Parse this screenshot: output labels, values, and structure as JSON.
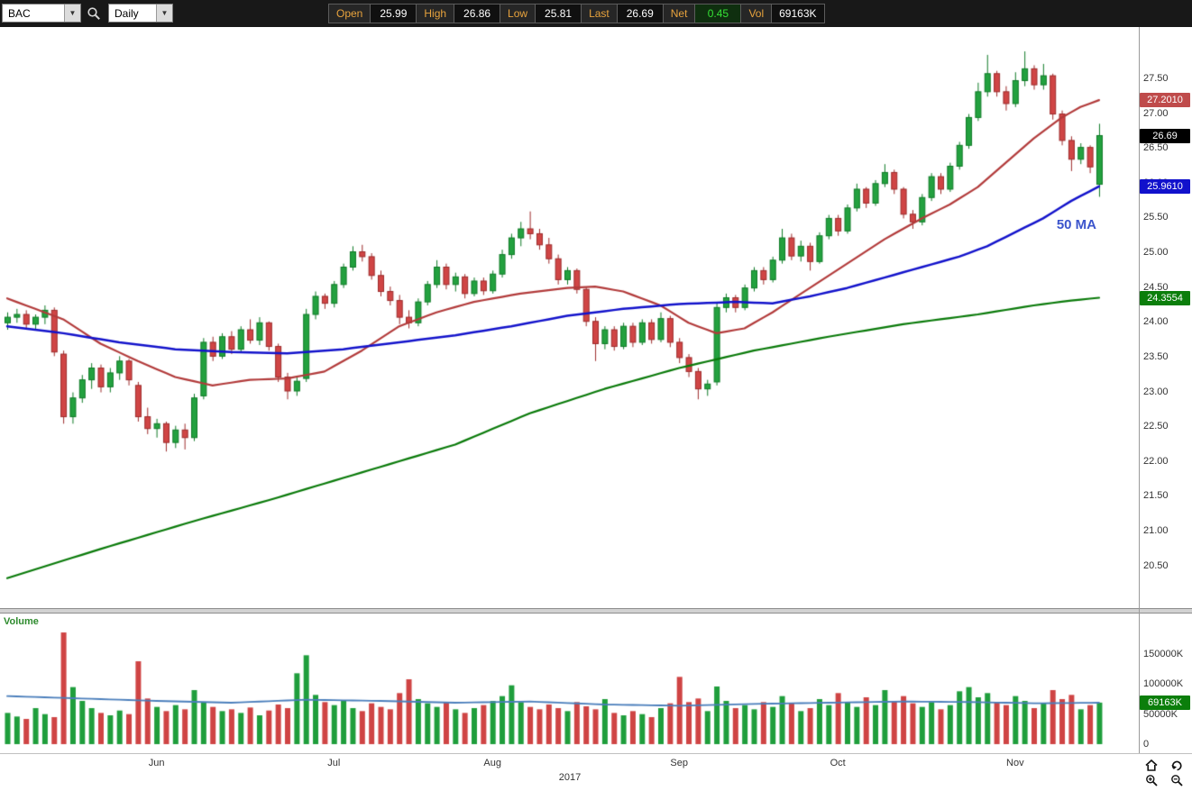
{
  "toolbar": {
    "symbol": "BAC",
    "timeframe": "Daily",
    "fields": [
      {
        "label": "Open",
        "value": "25.99"
      },
      {
        "label": "High",
        "value": "26.86"
      },
      {
        "label": "Low",
        "value": "25.81"
      },
      {
        "label": "Last",
        "value": "26.69"
      },
      {
        "label": "Net",
        "value": "0.45"
      },
      {
        "label": "Vol",
        "value": "69163K"
      }
    ]
  },
  "chart_data": {
    "type": "candlestick",
    "symbol": "BAC",
    "timeframe": "Daily",
    "year_label": "2017",
    "ma_label": "50 MA",
    "volume_panel_label": "Volume",
    "price_axis": {
      "min": 19.9,
      "max": 28.25,
      "ticks": [
        27.5,
        27.0,
        26.5,
        26.0,
        25.5,
        25.0,
        24.5,
        24.0,
        23.5,
        23.0,
        22.5,
        22.0,
        21.5,
        21.0,
        20.5
      ]
    },
    "month_ticks": [
      {
        "label": "Jun",
        "index": 16
      },
      {
        "label": "Jul",
        "index": 35
      },
      {
        "label": "Aug",
        "index": 52
      },
      {
        "label": "Sep",
        "index": 72
      },
      {
        "label": "Oct",
        "index": 89
      },
      {
        "label": "Nov",
        "index": 108
      }
    ],
    "style": {
      "up": "#23a13f",
      "up_edge": "#0e7a26",
      "down": "#d04545",
      "down_edge": "#9c2a2a",
      "vol_up": "#1f9e3c",
      "vol_down": "#cf4444"
    },
    "candles": [
      [
        24.0,
        24.15,
        23.9,
        24.08
      ],
      [
        24.08,
        24.2,
        24.0,
        24.12
      ],
      [
        24.12,
        24.18,
        23.92,
        23.98
      ],
      [
        23.98,
        24.12,
        23.9,
        24.08
      ],
      [
        24.08,
        24.25,
        23.98,
        24.18
      ],
      [
        24.18,
        24.22,
        23.52,
        23.58
      ],
      [
        23.55,
        23.6,
        22.55,
        22.65
      ],
      [
        22.65,
        23.0,
        22.55,
        22.92
      ],
      [
        22.92,
        23.25,
        22.85,
        23.18
      ],
      [
        23.18,
        23.42,
        23.05,
        23.35
      ],
      [
        23.35,
        23.4,
        23.0,
        23.08
      ],
      [
        23.08,
        23.35,
        23.0,
        23.28
      ],
      [
        23.28,
        23.52,
        23.18,
        23.45
      ],
      [
        23.45,
        23.48,
        23.1,
        23.18
      ],
      [
        23.1,
        23.15,
        22.58,
        22.65
      ],
      [
        22.65,
        22.78,
        22.4,
        22.48
      ],
      [
        22.48,
        22.62,
        22.35,
        22.55
      ],
      [
        22.55,
        22.58,
        22.15,
        22.28
      ],
      [
        22.28,
        22.52,
        22.2,
        22.46
      ],
      [
        22.46,
        22.55,
        22.18,
        22.35
      ],
      [
        22.35,
        22.98,
        22.3,
        22.92
      ],
      [
        22.95,
        23.78,
        22.9,
        23.72
      ],
      [
        23.72,
        23.8,
        23.45,
        23.52
      ],
      [
        23.52,
        23.85,
        23.48,
        23.8
      ],
      [
        23.8,
        23.88,
        23.55,
        23.62
      ],
      [
        23.62,
        23.95,
        23.58,
        23.9
      ],
      [
        23.9,
        24.05,
        23.7,
        23.75
      ],
      [
        23.75,
        24.08,
        23.68,
        24.0
      ],
      [
        24.0,
        24.02,
        23.6,
        23.66
      ],
      [
        23.66,
        23.7,
        23.15,
        23.22
      ],
      [
        23.22,
        23.28,
        22.9,
        23.02
      ],
      [
        23.02,
        23.22,
        22.95,
        23.16
      ],
      [
        23.2,
        24.2,
        23.15,
        24.12
      ],
      [
        24.12,
        24.45,
        24.05,
        24.38
      ],
      [
        24.38,
        24.42,
        24.2,
        24.28
      ],
      [
        24.28,
        24.6,
        24.22,
        24.55
      ],
      [
        24.55,
        24.85,
        24.5,
        24.8
      ],
      [
        24.8,
        25.1,
        24.75,
        25.02
      ],
      [
        25.02,
        25.12,
        24.88,
        24.95
      ],
      [
        24.95,
        25.0,
        24.62,
        24.68
      ],
      [
        24.68,
        24.75,
        24.38,
        24.45
      ],
      [
        24.45,
        24.52,
        24.25,
        24.32
      ],
      [
        24.32,
        24.4,
        23.98,
        24.08
      ],
      [
        24.08,
        24.18,
        23.92,
        24.0
      ],
      [
        24.0,
        24.35,
        23.95,
        24.3
      ],
      [
        24.3,
        24.6,
        24.25,
        24.55
      ],
      [
        24.55,
        24.9,
        24.5,
        24.8
      ],
      [
        24.8,
        24.85,
        24.48,
        24.55
      ],
      [
        24.55,
        24.72,
        24.45,
        24.66
      ],
      [
        24.66,
        24.7,
        24.35,
        24.42
      ],
      [
        24.42,
        24.65,
        24.38,
        24.6
      ],
      [
        24.6,
        24.65,
        24.4,
        24.46
      ],
      [
        24.46,
        24.75,
        24.42,
        24.7
      ],
      [
        24.7,
        25.05,
        24.65,
        24.98
      ],
      [
        24.98,
        25.28,
        24.92,
        25.22
      ],
      [
        25.22,
        25.45,
        25.1,
        25.35
      ],
      [
        25.35,
        25.6,
        25.2,
        25.28
      ],
      [
        25.28,
        25.35,
        25.05,
        25.12
      ],
      [
        25.12,
        25.22,
        24.85,
        24.92
      ],
      [
        24.92,
        24.98,
        24.55,
        24.62
      ],
      [
        24.62,
        24.8,
        24.55,
        24.75
      ],
      [
        24.75,
        24.78,
        24.42,
        24.48
      ],
      [
        24.48,
        24.52,
        23.95,
        24.02
      ],
      [
        24.02,
        24.08,
        23.45,
        23.7
      ],
      [
        23.7,
        23.95,
        23.62,
        23.9
      ],
      [
        23.9,
        23.95,
        23.6,
        23.66
      ],
      [
        23.66,
        24.0,
        23.62,
        23.95
      ],
      [
        23.95,
        24.0,
        23.65,
        23.72
      ],
      [
        23.72,
        24.05,
        23.68,
        24.0
      ],
      [
        24.0,
        24.05,
        23.7,
        23.76
      ],
      [
        23.76,
        24.15,
        23.72,
        24.06
      ],
      [
        24.06,
        24.1,
        23.65,
        23.72
      ],
      [
        23.72,
        23.78,
        23.42,
        23.5
      ],
      [
        23.5,
        23.55,
        23.22,
        23.3
      ],
      [
        23.3,
        23.35,
        22.9,
        23.05
      ],
      [
        23.05,
        23.18,
        22.95,
        23.12
      ],
      [
        23.15,
        24.28,
        23.1,
        24.22
      ],
      [
        24.22,
        24.42,
        24.15,
        24.36
      ],
      [
        24.36,
        24.4,
        24.15,
        24.22
      ],
      [
        24.22,
        24.55,
        24.18,
        24.5
      ],
      [
        24.5,
        24.8,
        24.45,
        24.75
      ],
      [
        24.75,
        24.8,
        24.55,
        24.62
      ],
      [
        24.62,
        24.95,
        24.58,
        24.9
      ],
      [
        24.9,
        25.35,
        24.85,
        25.22
      ],
      [
        25.22,
        25.28,
        24.9,
        24.96
      ],
      [
        24.96,
        25.18,
        24.88,
        25.1
      ],
      [
        25.1,
        25.15,
        24.75,
        24.88
      ],
      [
        24.88,
        25.3,
        24.85,
        25.25
      ],
      [
        25.25,
        25.55,
        25.2,
        25.5
      ],
      [
        25.5,
        25.55,
        25.25,
        25.32
      ],
      [
        25.32,
        25.7,
        25.28,
        25.65
      ],
      [
        25.65,
        26.0,
        25.6,
        25.92
      ],
      [
        25.92,
        25.95,
        25.65,
        25.72
      ],
      [
        25.72,
        26.05,
        25.68,
        26.0
      ],
      [
        26.0,
        26.28,
        25.95,
        26.16
      ],
      [
        26.16,
        26.2,
        25.85,
        25.92
      ],
      [
        25.92,
        25.95,
        25.5,
        25.56
      ],
      [
        25.56,
        25.62,
        25.35,
        25.45
      ],
      [
        25.45,
        25.85,
        25.4,
        25.8
      ],
      [
        25.8,
        26.15,
        25.75,
        26.1
      ],
      [
        26.1,
        26.15,
        25.85,
        25.92
      ],
      [
        25.92,
        26.3,
        25.88,
        26.25
      ],
      [
        26.25,
        26.6,
        26.2,
        26.55
      ],
      [
        26.55,
        27.0,
        26.5,
        26.95
      ],
      [
        26.95,
        27.45,
        26.9,
        27.32
      ],
      [
        27.32,
        27.85,
        27.25,
        27.58
      ],
      [
        27.58,
        27.62,
        27.25,
        27.32
      ],
      [
        27.32,
        27.4,
        27.05,
        27.15
      ],
      [
        27.15,
        27.6,
        27.1,
        27.48
      ],
      [
        27.48,
        27.9,
        27.4,
        27.65
      ],
      [
        27.65,
        27.7,
        27.35,
        27.42
      ],
      [
        27.42,
        27.72,
        27.35,
        27.55
      ],
      [
        27.55,
        27.58,
        26.92,
        27.0
      ],
      [
        27.0,
        27.05,
        26.55,
        26.62
      ],
      [
        26.62,
        26.68,
        26.18,
        26.35
      ],
      [
        26.35,
        26.58,
        26.28,
        26.52
      ],
      [
        26.52,
        26.55,
        26.15,
        26.24
      ],
      [
        25.99,
        26.86,
        25.81,
        26.69
      ]
    ],
    "volume": [
      52000,
      46000,
      42000,
      60000,
      50000,
      45000,
      186000,
      95000,
      72000,
      60000,
      52000,
      48000,
      56000,
      50000,
      138000,
      76000,
      62000,
      55000,
      65000,
      58000,
      90000,
      70000,
      62000,
      55000,
      58000,
      52000,
      61000,
      48000,
      56000,
      66000,
      60000,
      118000,
      148000,
      82000,
      70000,
      65000,
      72000,
      60000,
      55000,
      68000,
      62000,
      58000,
      85000,
      108000,
      75000,
      68000,
      62000,
      70000,
      58000,
      52000,
      60000,
      65000,
      72000,
      80000,
      98000,
      70000,
      62000,
      58000,
      66000,
      60000,
      55000,
      70000,
      63000,
      58000,
      75000,
      52000,
      48000,
      55000,
      50000,
      45000,
      60000,
      68000,
      112000,
      70000,
      76000,
      55000,
      96000,
      72000,
      60000,
      65000,
      58000,
      70000,
      62000,
      80000,
      68000,
      55000,
      60000,
      75000,
      65000,
      85000,
      70000,
      62000,
      78000,
      65000,
      90000,
      72000,
      80000,
      68000,
      62000,
      70000,
      58000,
      65000,
      88000,
      95000,
      78000,
      85000,
      70000,
      65000,
      80000,
      72000,
      60000,
      68000,
      90000,
      75000,
      82000,
      58000,
      65000,
      69163
    ],
    "overlays": {
      "ma_fast_red": {
        "color": "#b23b3b",
        "anchors": [
          [
            0,
            24.35
          ],
          [
            6,
            24.05
          ],
          [
            10,
            23.7
          ],
          [
            14,
            23.45
          ],
          [
            18,
            23.22
          ],
          [
            22,
            23.1
          ],
          [
            26,
            23.18
          ],
          [
            30,
            23.2
          ],
          [
            34,
            23.3
          ],
          [
            38,
            23.6
          ],
          [
            42,
            23.95
          ],
          [
            46,
            24.15
          ],
          [
            50,
            24.3
          ],
          [
            55,
            24.42
          ],
          [
            60,
            24.5
          ],
          [
            63,
            24.52
          ],
          [
            66,
            24.45
          ],
          [
            70,
            24.25
          ],
          [
            73,
            24.0
          ],
          [
            76,
            23.85
          ],
          [
            79,
            23.92
          ],
          [
            82,
            24.15
          ],
          [
            86,
            24.5
          ],
          [
            90,
            24.85
          ],
          [
            94,
            25.2
          ],
          [
            98,
            25.5
          ],
          [
            101,
            25.7
          ],
          [
            104,
            25.95
          ],
          [
            107,
            26.3
          ],
          [
            110,
            26.65
          ],
          [
            113,
            26.95
          ],
          [
            115,
            27.1
          ],
          [
            117,
            27.2
          ]
        ]
      },
      "ma_50_blue": {
        "color": "#1313cb",
        "anchors": [
          [
            0,
            23.95
          ],
          [
            6,
            23.85
          ],
          [
            12,
            23.72
          ],
          [
            18,
            23.62
          ],
          [
            24,
            23.58
          ],
          [
            30,
            23.56
          ],
          [
            36,
            23.62
          ],
          [
            42,
            23.72
          ],
          [
            48,
            23.82
          ],
          [
            54,
            23.95
          ],
          [
            60,
            24.1
          ],
          [
            66,
            24.2
          ],
          [
            72,
            24.27
          ],
          [
            78,
            24.3
          ],
          [
            82,
            24.28
          ],
          [
            86,
            24.38
          ],
          [
            90,
            24.5
          ],
          [
            94,
            24.65
          ],
          [
            98,
            24.8
          ],
          [
            102,
            24.95
          ],
          [
            105,
            25.1
          ],
          [
            108,
            25.3
          ],
          [
            111,
            25.5
          ],
          [
            114,
            25.75
          ],
          [
            117,
            25.96
          ]
        ]
      },
      "ma_slow_green": {
        "color": "#0a7a0a",
        "anchors": [
          [
            0,
            20.33
          ],
          [
            10,
            20.75
          ],
          [
            20,
            21.15
          ],
          [
            28,
            21.45
          ],
          [
            38,
            21.85
          ],
          [
            48,
            22.25
          ],
          [
            56,
            22.7
          ],
          [
            64,
            23.05
          ],
          [
            72,
            23.35
          ],
          [
            80,
            23.6
          ],
          [
            88,
            23.8
          ],
          [
            96,
            23.98
          ],
          [
            104,
            24.12
          ],
          [
            110,
            24.25
          ],
          [
            114,
            24.32
          ],
          [
            117,
            24.36
          ]
        ]
      }
    },
    "volume_ma": {
      "color": "#4a7ebb",
      "anchors": [
        [
          0,
          80000
        ],
        [
          8,
          76000
        ],
        [
          16,
          72000
        ],
        [
          24,
          69000
        ],
        [
          32,
          74000
        ],
        [
          40,
          72000
        ],
        [
          48,
          69000
        ],
        [
          56,
          71000
        ],
        [
          64,
          66000
        ],
        [
          72,
          64000
        ],
        [
          80,
          67000
        ],
        [
          88,
          69000
        ],
        [
          96,
          71000
        ],
        [
          104,
          70000
        ],
        [
          110,
          68000
        ],
        [
          117,
          69000
        ]
      ]
    },
    "volume_axis": {
      "ticks": [
        0,
        50000,
        100000,
        150000
      ],
      "tick_labels": [
        "0",
        "50000K",
        "100000K",
        "150000K"
      ]
    },
    "badges": {
      "ma_fast": {
        "text": "27.2010",
        "value": 27.201,
        "color": "#bf4b4b"
      },
      "last": {
        "text": "26.69",
        "value": 26.69,
        "color": "#000000"
      },
      "ma_50": {
        "text": "25.9610",
        "value": 25.961,
        "color": "#1111cc"
      },
      "ma_slow": {
        "text": "24.3554",
        "value": 24.3554,
        "color": "#0b7e0b"
      },
      "volume": {
        "text": "69163K",
        "value": 69163,
        "color": "#0b7e0b"
      }
    }
  },
  "corner_icons": [
    {
      "name": "home"
    },
    {
      "name": "undo"
    },
    {
      "name": "zoom-in"
    },
    {
      "name": "zoom-out"
    }
  ]
}
